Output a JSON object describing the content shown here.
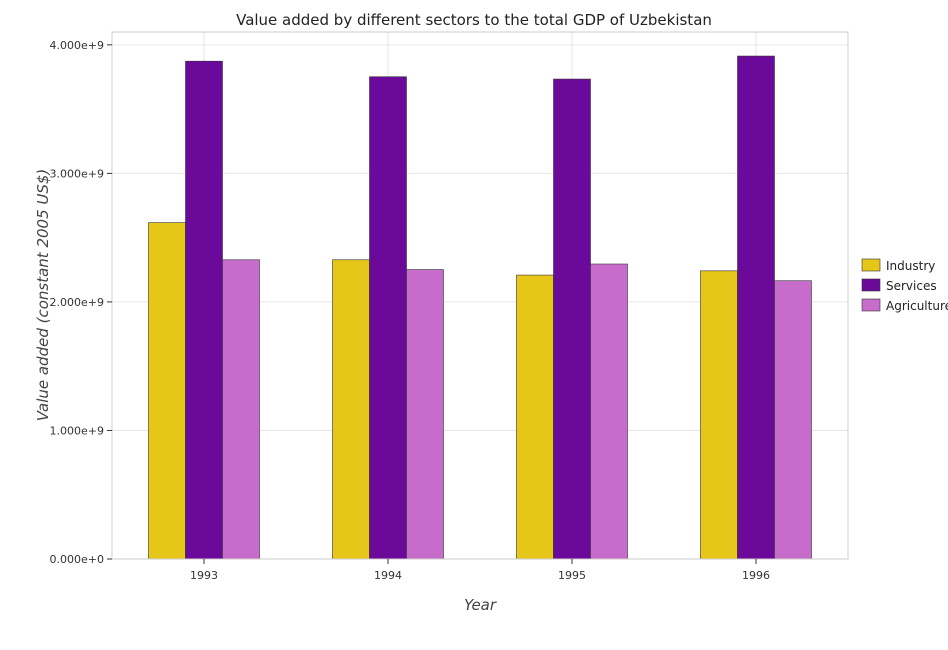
{
  "chart_data": {
    "type": "bar",
    "title": "Value added by different sectors to the total GDP of Uzbekistan",
    "xlabel": "Year",
    "ylabel": "Value added (constant 2005 US$)",
    "categories": [
      "1993",
      "1994",
      "1995",
      "1996"
    ],
    "ylim": [
      0,
      4100000000
    ],
    "yticks": [
      0,
      1000000000,
      2000000000,
      3000000000,
      4000000000
    ],
    "ytick_labels": [
      "0.000e+0",
      "1.000e+9",
      "2.000e+9",
      "3.000e+9",
      "4.000e+9"
    ],
    "grid": true,
    "legend_position": "right",
    "series": [
      {
        "name": "Industry",
        "color": "#e6c619",
        "values": [
          2617000000,
          2328000000,
          2209000000,
          2242000000
        ]
      },
      {
        "name": "Services",
        "color": "#6b0a9a",
        "values": [
          3873000000,
          3752000000,
          3734000000,
          3913000000
        ]
      },
      {
        "name": "Agriculture",
        "color": "#c86ccc",
        "values": [
          2328000000,
          2252000000,
          2295000000,
          2165000000
        ]
      }
    ]
  }
}
